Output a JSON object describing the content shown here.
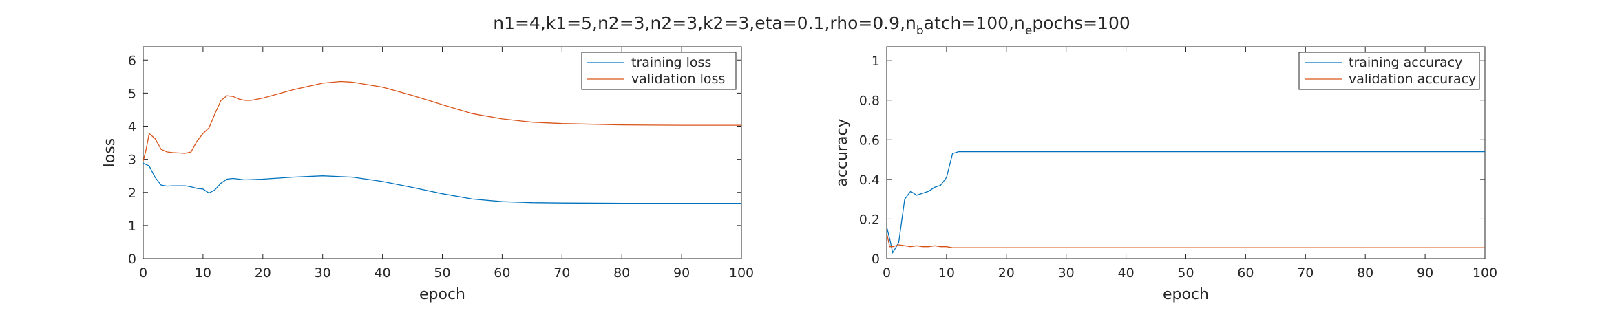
{
  "figure": {
    "title_parts": [
      {
        "text": "n1=4,k1=5,n2=3,n2=3,k2=3,eta=0.1,rho=0.9,n",
        "sub": false
      },
      {
        "text": "b",
        "sub": true
      },
      {
        "text": "atch=100,n",
        "sub": false
      },
      {
        "text": "e",
        "sub": true
      },
      {
        "text": "pochs=100",
        "sub": false
      }
    ]
  },
  "chart_data": [
    {
      "type": "line",
      "xlabel": "epoch",
      "ylabel": "loss",
      "xlim": [
        0,
        100
      ],
      "ylim": [
        0,
        6.4
      ],
      "xticks": [
        0,
        10,
        20,
        30,
        40,
        50,
        60,
        70,
        80,
        90,
        100
      ],
      "yticks": [
        0,
        1,
        2,
        3,
        4,
        5,
        6
      ],
      "grid": false,
      "legend": "top-right",
      "series": [
        {
          "name": "training loss",
          "color": "#0072BD",
          "x": [
            0,
            1,
            2,
            3,
            4,
            5,
            6,
            7,
            8,
            9,
            10,
            11,
            12,
            13,
            14,
            15,
            17,
            20,
            25,
            30,
            35,
            40,
            45,
            50,
            55,
            60,
            65,
            70,
            80,
            90,
            100
          ],
          "y": [
            2.88,
            2.8,
            2.45,
            2.22,
            2.19,
            2.2,
            2.2,
            2.2,
            2.17,
            2.12,
            2.1,
            1.98,
            2.08,
            2.28,
            2.4,
            2.42,
            2.38,
            2.4,
            2.46,
            2.5,
            2.46,
            2.33,
            2.15,
            1.96,
            1.8,
            1.72,
            1.69,
            1.68,
            1.67,
            1.67,
            1.67
          ]
        },
        {
          "name": "validation loss",
          "color": "#D95319",
          "x": [
            0,
            0.5,
            1,
            2,
            3,
            4,
            5,
            6,
            7,
            8,
            9,
            10,
            11,
            12,
            13,
            14,
            15,
            16,
            17,
            18,
            20,
            25,
            30,
            33,
            35,
            40,
            45,
            50,
            55,
            60,
            65,
            70,
            80,
            90,
            100
          ],
          "y": [
            2.95,
            3.3,
            3.78,
            3.62,
            3.3,
            3.22,
            3.2,
            3.19,
            3.18,
            3.22,
            3.55,
            3.78,
            3.95,
            4.38,
            4.78,
            4.92,
            4.9,
            4.82,
            4.78,
            4.78,
            4.85,
            5.1,
            5.3,
            5.35,
            5.33,
            5.18,
            4.93,
            4.65,
            4.38,
            4.22,
            4.12,
            4.08,
            4.04,
            4.03,
            4.03
          ]
        }
      ]
    },
    {
      "type": "line",
      "xlabel": "epoch",
      "ylabel": "accuracy",
      "xlim": [
        0,
        100
      ],
      "ylim": [
        0,
        1.07
      ],
      "xticks": [
        0,
        10,
        20,
        30,
        40,
        50,
        60,
        70,
        80,
        90,
        100
      ],
      "yticks": [
        0,
        0.2,
        0.4,
        0.6,
        0.8,
        1
      ],
      "grid": false,
      "legend": "top-right",
      "series": [
        {
          "name": "training accuracy",
          "color": "#0072BD",
          "x": [
            0,
            0.5,
            1,
            2,
            3,
            4,
            5,
            6,
            7,
            8,
            9,
            10,
            11,
            12,
            20,
            40,
            60,
            80,
            100
          ],
          "y": [
            0.16,
            0.1,
            0.03,
            0.08,
            0.3,
            0.34,
            0.32,
            0.33,
            0.34,
            0.36,
            0.37,
            0.41,
            0.53,
            0.54,
            0.54,
            0.54,
            0.54,
            0.54,
            0.54
          ]
        },
        {
          "name": "validation accuracy",
          "color": "#D95319",
          "x": [
            0,
            0.5,
            1,
            2,
            3,
            4,
            5,
            6,
            7,
            8,
            9,
            10,
            11,
            12,
            20,
            40,
            60,
            80,
            100
          ],
          "y": [
            0.13,
            0.06,
            0.06,
            0.07,
            0.065,
            0.06,
            0.065,
            0.06,
            0.06,
            0.065,
            0.06,
            0.06,
            0.055,
            0.055,
            0.055,
            0.055,
            0.055,
            0.055,
            0.055
          ]
        }
      ]
    }
  ]
}
